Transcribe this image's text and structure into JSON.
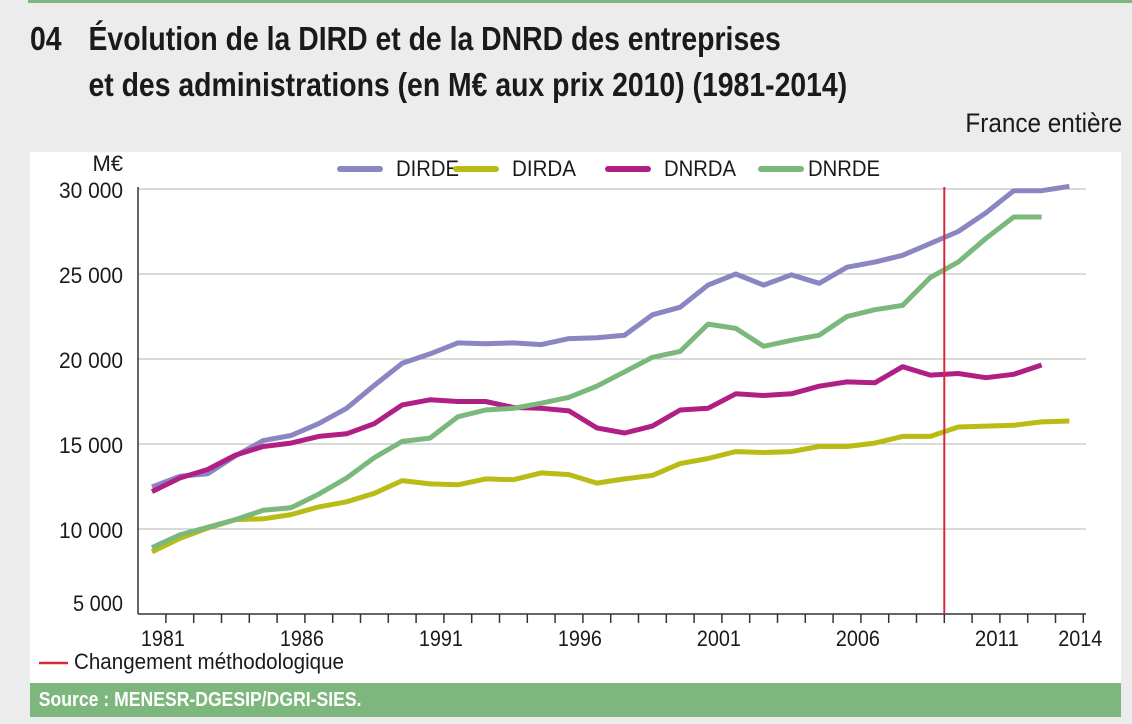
{
  "header": {
    "figure_number": "04",
    "title_line1": "Évolution de la DIRD et de la DNRD des entreprises",
    "title_line2": "et des administrations (en M€ aux prix 2010) (1981-2014)",
    "scope": "France entière"
  },
  "footer": {
    "source": "Source : MENESR-DGESIP/DGRI-SIES."
  },
  "chart_data": {
    "type": "line",
    "title": "Évolution de la DIRD et de la DNRD des entreprises et des administrations (en M€ aux prix 2010) (1981-2014)",
    "xlabel": "",
    "ylabel": "M€",
    "ylim": [
      5000,
      30000
    ],
    "yticks": [
      5000,
      10000,
      15000,
      20000,
      25000,
      30000
    ],
    "ytick_labels": [
      "5 000",
      "10 000",
      "15 000",
      "20 000",
      "25 000",
      "30 000"
    ],
    "xtick_labels": [
      "1981",
      "1986",
      "1991",
      "1996",
      "2001",
      "2006",
      "2011",
      "2014"
    ],
    "grid": "horizontal",
    "legend_position": "top",
    "x": [
      1981,
      1982,
      1983,
      1984,
      1985,
      1986,
      1987,
      1988,
      1989,
      1990,
      1991,
      1992,
      1993,
      1994,
      1995,
      1996,
      1997,
      1998,
      1999,
      2000,
      2001,
      2002,
      2003,
      2004,
      2005,
      2006,
      2007,
      2008,
      2009,
      2010,
      2011,
      2012,
      2013,
      2014
    ],
    "series": [
      {
        "name": "DIRDE",
        "color": "#8a86c2",
        "values": [
          12470,
          13100,
          13250,
          14300,
          15200,
          15500,
          16200,
          17100,
          18450,
          19750,
          20300,
          20950,
          20900,
          20950,
          20850,
          21200,
          21250,
          21400,
          22600,
          23050,
          24350,
          25000,
          24350,
          24950,
          24450,
          25400,
          25700,
          26100,
          26800,
          27500,
          28600,
          29900,
          29900,
          30150
        ]
      },
      {
        "name": "DIRDA",
        "color": "#b8bc14",
        "values": [
          8650,
          9450,
          10050,
          10550,
          10600,
          10850,
          11300,
          11600,
          12100,
          12850,
          12650,
          12600,
          12950,
          12900,
          13300,
          13200,
          12700,
          12950,
          13150,
          13850,
          14150,
          14550,
          14500,
          14550,
          14850,
          14850,
          15050,
          15450,
          15450,
          16000,
          16050,
          16100,
          16300,
          16350
        ]
      },
      {
        "name": "DNRDA",
        "color": "#b01f83",
        "values": [
          12200,
          13000,
          13500,
          14350,
          14850,
          15050,
          15450,
          15600,
          16200,
          17300,
          17600,
          17500,
          17500,
          17150,
          17100,
          16950,
          15950,
          15650,
          16050,
          17000,
          17100,
          17950,
          17850,
          17950,
          18400,
          18650,
          18600,
          19550,
          19050,
          19150,
          18900,
          19100,
          19650,
          null
        ]
      },
      {
        "name": "DNRDE",
        "color": "#7ab87c",
        "values": [
          8900,
          9650,
          10100,
          10550,
          11100,
          11250,
          12050,
          13000,
          14200,
          15150,
          15350,
          16600,
          17000,
          17100,
          17400,
          17750,
          18400,
          19250,
          20100,
          20450,
          22050,
          21800,
          20750,
          21100,
          21400,
          22500,
          22900,
          23150,
          24800,
          25700,
          27100,
          28350,
          28350,
          null
        ]
      }
    ],
    "annotations": [
      {
        "type": "vertical-line",
        "between": [
          2009,
          2010
        ],
        "color": "#d42a35",
        "label": "Changement méthodologique"
      }
    ]
  }
}
